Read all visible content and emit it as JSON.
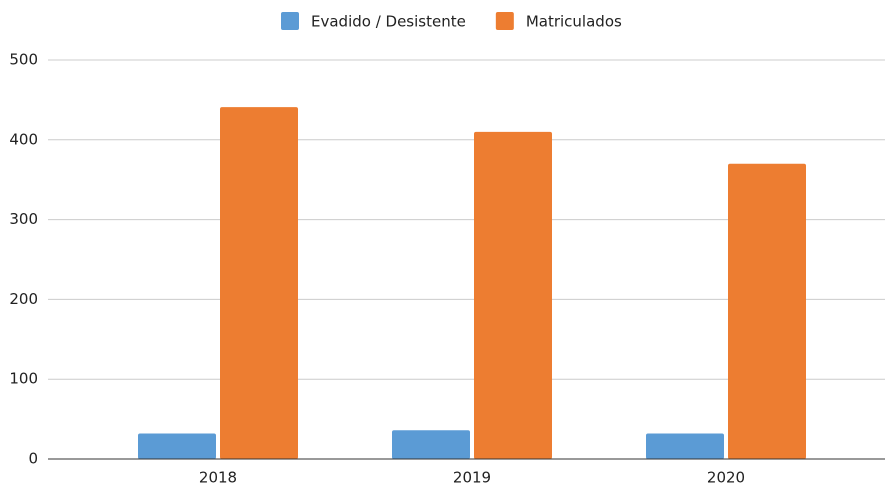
{
  "chart_data": {
    "type": "bar",
    "categories": [
      "2018",
      "2019",
      "2020"
    ],
    "series": [
      {
        "name": "Evadido / Desistente",
        "color": "#5b9bd5",
        "values": [
          32,
          36,
          32
        ]
      },
      {
        "name": "Matriculados",
        "color": "#ed7d31",
        "values": [
          441,
          410,
          370
        ]
      }
    ],
    "ylim": [
      0,
      500
    ],
    "yticks": [
      0,
      100,
      200,
      300,
      400,
      500
    ],
    "grid": true,
    "legend": "top"
  }
}
